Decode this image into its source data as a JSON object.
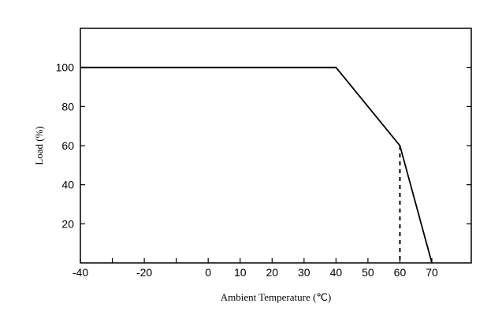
{
  "chart_data": {
    "type": "line",
    "title": "",
    "xlabel": "Ambient Temperature (℃)",
    "ylabel": "Load (%)",
    "xlim": [
      -40,
      70
    ],
    "ylim": [
      0,
      120
    ],
    "xticks": [
      -40,
      -30,
      -20,
      -10,
      0,
      10,
      20,
      30,
      40,
      50,
      60,
      70
    ],
    "xtick_labels": [
      "-40",
      "",
      "-20",
      "",
      "0",
      "10",
      "20",
      "30",
      "40",
      "50",
      "60",
      "70"
    ],
    "yticks": [
      20,
      40,
      60,
      80,
      100
    ],
    "ytick_labels": [
      "20",
      "40",
      "60",
      "80",
      "100"
    ],
    "grid": false,
    "series": [
      {
        "x": [
          -40,
          40,
          60,
          70
        ],
        "y": [
          100,
          100,
          60,
          0
        ],
        "style": "solid",
        "color": "#000000"
      },
      {
        "x": [
          60,
          60
        ],
        "y": [
          60,
          0
        ],
        "style": "dashed",
        "color": "#000000"
      }
    ]
  }
}
